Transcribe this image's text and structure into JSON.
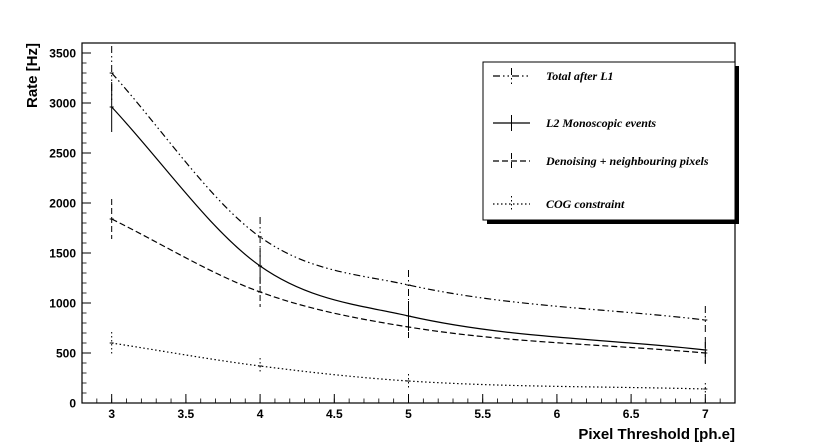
{
  "chart_data": {
    "type": "line",
    "xlabel": "Pixel Threshold [ph.e]",
    "ylabel": "Rate [Hz]",
    "xlim": [
      2.8,
      7.2
    ],
    "ylim": [
      0,
      3600
    ],
    "x_ticks": [
      "3",
      "3.5",
      "4",
      "4.5",
      "5",
      "5.5",
      "6",
      "6.5",
      "7"
    ],
    "y_ticks": [
      "0",
      "500",
      "1000",
      "1500",
      "2000",
      "2500",
      "3000",
      "3500"
    ],
    "grid": false,
    "legend_position": "top-right",
    "x": [
      3,
      4,
      5,
      7
    ],
    "series": [
      {
        "name": "Total after L1",
        "style": "dash-dot-dot",
        "values": [
          3300,
          1660,
          1180,
          830
        ],
        "errors": [
          270,
          200,
          150,
          140
        ]
      },
      {
        "name": "L2 Monoscopic events",
        "style": "solid",
        "values": [
          2960,
          1370,
          870,
          530
        ],
        "errors": [
          250,
          180,
          150,
          130
        ]
      },
      {
        "name": "Denoising + neighbouring pixels",
        "style": "dashed",
        "values": [
          1840,
          1110,
          760,
          500
        ],
        "errors": [
          200,
          150,
          130,
          110
        ]
      },
      {
        "name": "COG constraint",
        "style": "dotted",
        "values": [
          600,
          370,
          220,
          140
        ],
        "errors": [
          110,
          80,
          70,
          60
        ]
      }
    ]
  }
}
